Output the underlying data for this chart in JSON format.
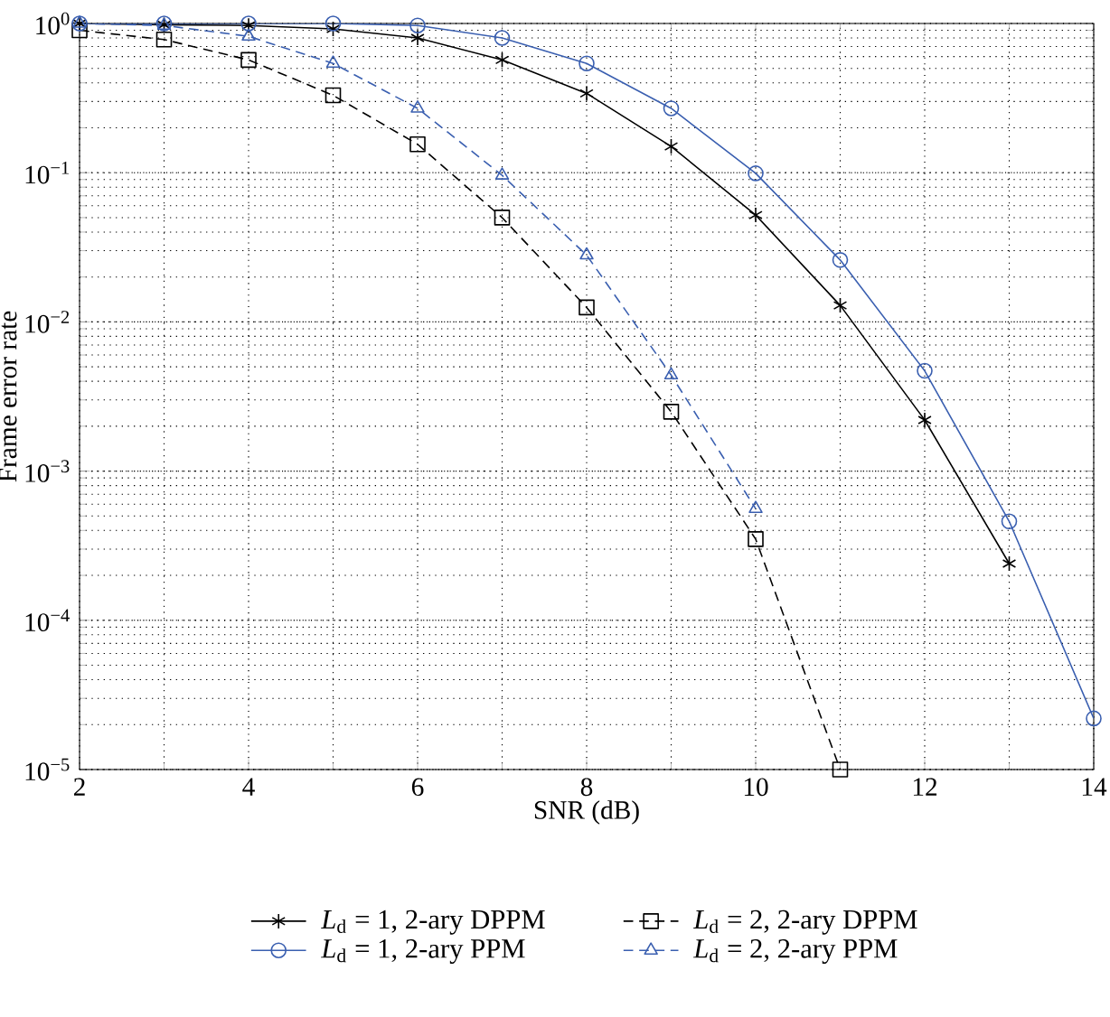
{
  "chart_data": {
    "type": "line",
    "xlabel": "SNR (dB)",
    "ylabel": "Frame error rate",
    "log": "y",
    "grid": true,
    "legend": "bottom",
    "xlim": [
      2,
      14
    ],
    "xticks": [
      2,
      4,
      6,
      8,
      10,
      12,
      14
    ],
    "ylim": [
      1e-05,
      1
    ],
    "yticks": [
      {
        "value": 1e-05,
        "label": "10$^{−5}$"
      },
      {
        "value": 0.0001,
        "label": "10$^{−4}$"
      },
      {
        "value": 0.001,
        "label": "10$^{−3}$"
      },
      {
        "value": 0.01,
        "label": "10$^{−2}$"
      },
      {
        "value": 0.1,
        "label": "10$^{−1}$"
      },
      {
        "value": 1,
        "label": "10$^{0}$"
      }
    ],
    "series": [
      {
        "name": "*L*$_{d}$ = 1, 2-ary DPPM",
        "color": "#000000",
        "marker": "cross",
        "line_style": "solid",
        "x": [
          2,
          3,
          4,
          5,
          6,
          7,
          8,
          9,
          10,
          11,
          12,
          13
        ],
        "values": [
          1,
          0.98,
          0.97,
          0.92,
          0.8,
          0.57,
          0.34,
          0.15,
          0.052,
          0.0129,
          0.0022,
          0.00024
        ]
      },
      {
        "name": "*L*$_{d}$ = 2, 2-ary DPPM",
        "color": "#000000",
        "marker": "square",
        "line_style": "dashed",
        "x": [
          2,
          3,
          4,
          5,
          6,
          7,
          8,
          9,
          10,
          11
        ],
        "values": [
          0.9,
          0.78,
          0.57,
          0.33,
          0.155,
          0.05,
          0.0125,
          0.0025,
          0.00035,
          1e-05
        ]
      },
      {
        "name": "*L*$_{d}$ = 1, 2-ary PPM",
        "color": "#3a5fb0",
        "marker": "circle",
        "line_style": "solid",
        "x": [
          2,
          3,
          4,
          5,
          6,
          7,
          8,
          9,
          10,
          11,
          12,
          13,
          14
        ],
        "values": [
          1,
          1,
          1,
          1,
          0.97,
          0.8,
          0.54,
          0.27,
          0.099,
          0.026,
          0.0047,
          0.00046,
          2.2e-05
        ]
      },
      {
        "name": "*L*$_{d}$ = 2, 2-ary PPM",
        "color": "#3a5fb0",
        "marker": "triangle",
        "line_style": "dashed",
        "x": [
          2,
          3,
          4,
          5,
          6,
          7,
          8,
          9,
          10
        ],
        "values": [
          1,
          0.97,
          0.82,
          0.54,
          0.27,
          0.096,
          0.028,
          0.0044,
          0.00056
        ]
      }
    ]
  }
}
